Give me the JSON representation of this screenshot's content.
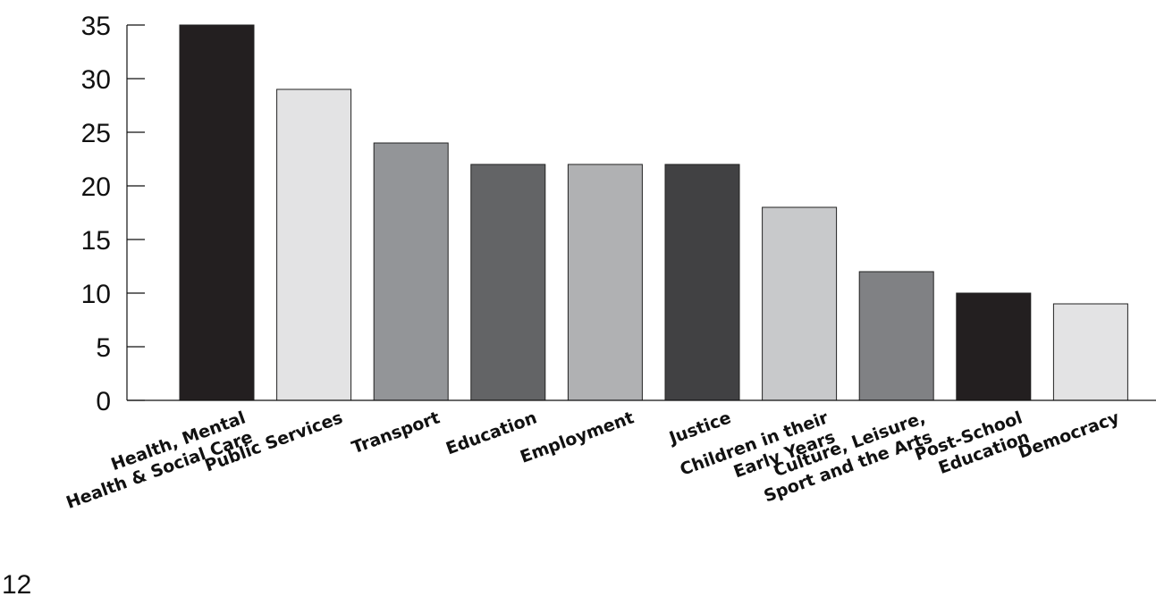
{
  "chart_data": {
    "type": "bar",
    "categories": [
      [
        "Health, Mental",
        "Health & Social Care"
      ],
      [
        "Public Services"
      ],
      [
        "Transport"
      ],
      [
        "Education"
      ],
      [
        "Employment"
      ],
      [
        "Justice"
      ],
      [
        "Children in their",
        "Early Years"
      ],
      [
        "Culture, Leisure,",
        "Sport and the Arts"
      ],
      [
        "Post-School",
        "Education"
      ],
      [
        "Democracy"
      ]
    ],
    "values": [
      35,
      29,
      24,
      22,
      22,
      22,
      18,
      12,
      10,
      9
    ],
    "bar_colors": [
      "#231f20",
      "#e3e3e4",
      "#939598",
      "#636466",
      "#b0b1b3",
      "#414143",
      "#c8c9cb",
      "#808184",
      "#231f20",
      "#e3e3e4"
    ],
    "ylim": [
      0,
      35
    ],
    "yticks": [
      0,
      5,
      10,
      15,
      20,
      25,
      30,
      35
    ],
    "grid": false,
    "title": "",
    "xlabel": "",
    "ylabel": ""
  },
  "page": {
    "number": "12"
  }
}
